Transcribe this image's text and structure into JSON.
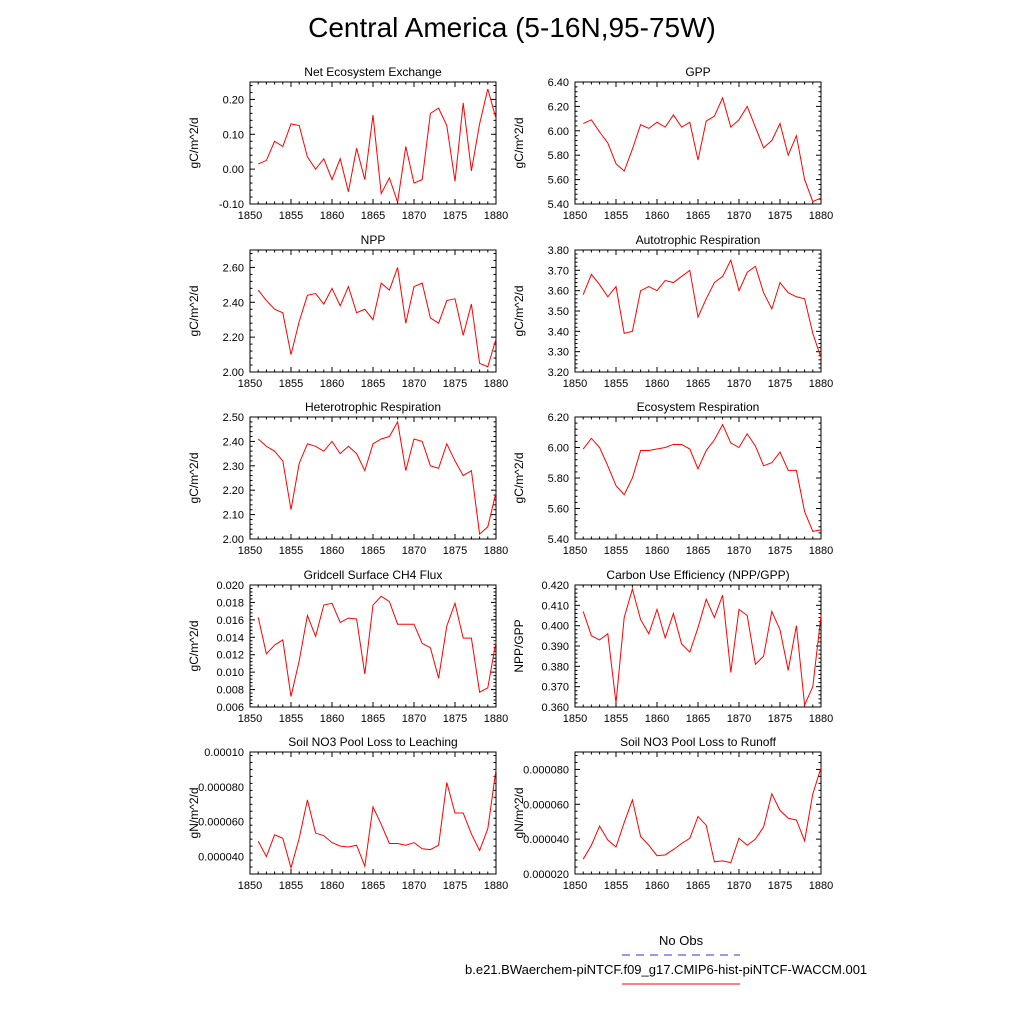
{
  "title": "Central America (5-16N,95-75W)",
  "legend": {
    "items": [
      {
        "label": "No Obs",
        "color": "#3333cc",
        "dash": true
      },
      {
        "label": "b.e21.BWaerchem-piNTCF.f09_g17.CMIP6-hist-piNTCF-WACCM.001",
        "color": "#ff0000",
        "dash": false
      }
    ]
  },
  "chart_data": [
    {
      "type": "line",
      "title": "Net Ecosystem Exchange",
      "ylabel": "gC/m^2/d",
      "xlabel": "",
      "xlim": [
        1850,
        1880
      ],
      "ylim": [
        -0.1,
        0.25
      ],
      "xticks": [
        1850,
        1855,
        1860,
        1865,
        1870,
        1875,
        1880
      ],
      "xtick_labels": [
        "1850",
        "1855",
        "1860",
        "1865",
        "1870",
        "1875",
        "1880"
      ],
      "yticks": [
        -0.1,
        0.0,
        0.1,
        0.2
      ],
      "ytick_labels": [
        "-0.10",
        "0.00",
        "0.10",
        "0.20"
      ],
      "x": [
        1851,
        1852,
        1853,
        1854,
        1855,
        1856,
        1857,
        1858,
        1859,
        1860,
        1861,
        1862,
        1863,
        1864,
        1865,
        1866,
        1867,
        1868,
        1869,
        1870,
        1871,
        1872,
        1873,
        1874,
        1875,
        1876,
        1877,
        1878,
        1879,
        1880
      ],
      "series": [
        {
          "color": "#ff0000",
          "values": [
            0.015,
            0.025,
            0.08,
            0.065,
            0.13,
            0.125,
            0.035,
            0.0,
            0.03,
            -0.03,
            0.03,
            -0.065,
            0.06,
            -0.03,
            0.155,
            -0.07,
            -0.025,
            -0.095,
            0.065,
            -0.04,
            -0.03,
            0.16,
            0.175,
            0.125,
            -0.035,
            0.19,
            -0.005,
            0.13,
            0.23,
            0.145
          ]
        }
      ]
    },
    {
      "type": "line",
      "title": "GPP",
      "ylabel": "gC/m^2/d",
      "xlabel": "",
      "xlim": [
        1850,
        1880
      ],
      "ylim": [
        5.4,
        6.4
      ],
      "xticks": [
        1850,
        1855,
        1860,
        1865,
        1870,
        1875,
        1880
      ],
      "xtick_labels": [
        "1850",
        "1855",
        "1860",
        "1865",
        "1870",
        "1875",
        "1880"
      ],
      "yticks": [
        5.4,
        5.6,
        5.8,
        6.0,
        6.2,
        6.4
      ],
      "ytick_labels": [
        "5.40",
        "5.60",
        "5.80",
        "6.00",
        "6.20",
        "6.40"
      ],
      "x": [
        1851,
        1852,
        1853,
        1854,
        1855,
        1856,
        1857,
        1858,
        1859,
        1860,
        1861,
        1862,
        1863,
        1864,
        1865,
        1866,
        1867,
        1868,
        1869,
        1870,
        1871,
        1872,
        1873,
        1874,
        1875,
        1876,
        1877,
        1878,
        1879,
        1880
      ],
      "series": [
        {
          "color": "#ff0000",
          "values": [
            6.06,
            6.09,
            5.99,
            5.9,
            5.73,
            5.67,
            5.85,
            6.05,
            6.02,
            6.07,
            6.03,
            6.13,
            6.03,
            6.07,
            5.76,
            6.08,
            6.12,
            6.27,
            6.03,
            6.09,
            6.2,
            6.03,
            5.86,
            5.92,
            6.06,
            5.8,
            5.96,
            5.6,
            5.42,
            5.45
          ]
        }
      ]
    },
    {
      "type": "line",
      "title": "NPP",
      "ylabel": "gC/m^2/d",
      "xlabel": "",
      "xlim": [
        1850,
        1880
      ],
      "ylim": [
        2.0,
        2.7
      ],
      "xticks": [
        1850,
        1855,
        1860,
        1865,
        1870,
        1875,
        1880
      ],
      "xtick_labels": [
        "1850",
        "1855",
        "1860",
        "1865",
        "1870",
        "1875",
        "1880"
      ],
      "yticks": [
        2.0,
        2.2,
        2.4,
        2.6
      ],
      "ytick_labels": [
        "2.00",
        "2.20",
        "2.40",
        "2.60"
      ],
      "x": [
        1851,
        1852,
        1853,
        1854,
        1855,
        1856,
        1857,
        1858,
        1859,
        1860,
        1861,
        1862,
        1863,
        1864,
        1865,
        1866,
        1867,
        1868,
        1869,
        1870,
        1871,
        1872,
        1873,
        1874,
        1875,
        1876,
        1877,
        1878,
        1879,
        1880
      ],
      "series": [
        {
          "color": "#ff0000",
          "values": [
            2.47,
            2.41,
            2.36,
            2.34,
            2.1,
            2.29,
            2.44,
            2.45,
            2.39,
            2.48,
            2.38,
            2.49,
            2.34,
            2.36,
            2.3,
            2.51,
            2.47,
            2.6,
            2.28,
            2.49,
            2.51,
            2.31,
            2.28,
            2.41,
            2.42,
            2.21,
            2.39,
            2.05,
            2.03,
            2.19
          ]
        }
      ]
    },
    {
      "type": "line",
      "title": "Autotrophic Respiration",
      "ylabel": "gC/m^2/d",
      "xlabel": "",
      "xlim": [
        1850,
        1880
      ],
      "ylim": [
        3.2,
        3.8
      ],
      "xticks": [
        1850,
        1855,
        1860,
        1865,
        1870,
        1875,
        1880
      ],
      "xtick_labels": [
        "1850",
        "1855",
        "1860",
        "1865",
        "1870",
        "1875",
        "1880"
      ],
      "yticks": [
        3.2,
        3.3,
        3.4,
        3.5,
        3.6,
        3.7,
        3.8
      ],
      "ytick_labels": [
        "3.20",
        "3.30",
        "3.40",
        "3.50",
        "3.60",
        "3.70",
        "3.80"
      ],
      "x": [
        1851,
        1852,
        1853,
        1854,
        1855,
        1856,
        1857,
        1858,
        1859,
        1860,
        1861,
        1862,
        1863,
        1864,
        1865,
        1866,
        1867,
        1868,
        1869,
        1870,
        1871,
        1872,
        1873,
        1874,
        1875,
        1876,
        1877,
        1878,
        1879,
        1880
      ],
      "series": [
        {
          "color": "#ff0000",
          "values": [
            3.58,
            3.68,
            3.63,
            3.57,
            3.62,
            3.39,
            3.4,
            3.6,
            3.62,
            3.6,
            3.65,
            3.64,
            3.67,
            3.7,
            3.47,
            3.56,
            3.64,
            3.67,
            3.75,
            3.6,
            3.69,
            3.72,
            3.59,
            3.51,
            3.64,
            3.59,
            3.57,
            3.56,
            3.39,
            3.27
          ]
        }
      ]
    },
    {
      "type": "line",
      "title": "Heterotrophic Respiration",
      "ylabel": "gC/m^2/d",
      "xlabel": "",
      "xlim": [
        1850,
        1880
      ],
      "ylim": [
        2.0,
        2.5
      ],
      "xticks": [
        1850,
        1855,
        1860,
        1865,
        1870,
        1875,
        1880
      ],
      "xtick_labels": [
        "1850",
        "1855",
        "1860",
        "1865",
        "1870",
        "1875",
        "1880"
      ],
      "yticks": [
        2.0,
        2.1,
        2.2,
        2.3,
        2.4,
        2.5
      ],
      "ytick_labels": [
        "2.00",
        "2.10",
        "2.20",
        "2.30",
        "2.40",
        "2.50"
      ],
      "x": [
        1851,
        1852,
        1853,
        1854,
        1855,
        1856,
        1857,
        1858,
        1859,
        1860,
        1861,
        1862,
        1863,
        1864,
        1865,
        1866,
        1867,
        1868,
        1869,
        1870,
        1871,
        1872,
        1873,
        1874,
        1875,
        1876,
        1877,
        1878,
        1879,
        1880
      ],
      "series": [
        {
          "color": "#ff0000",
          "values": [
            2.41,
            2.38,
            2.36,
            2.32,
            2.12,
            2.31,
            2.39,
            2.38,
            2.36,
            2.4,
            2.35,
            2.38,
            2.35,
            2.28,
            2.39,
            2.41,
            2.42,
            2.48,
            2.28,
            2.41,
            2.4,
            2.3,
            2.29,
            2.39,
            2.32,
            2.26,
            2.28,
            2.02,
            2.05,
            2.19
          ]
        }
      ]
    },
    {
      "type": "line",
      "title": "Ecosystem Respiration",
      "ylabel": "gC/m^2/d",
      "xlabel": "",
      "xlim": [
        1850,
        1880
      ],
      "ylim": [
        5.4,
        6.2
      ],
      "xticks": [
        1850,
        1855,
        1860,
        1865,
        1870,
        1875,
        1880
      ],
      "xtick_labels": [
        "1850",
        "1855",
        "1860",
        "1865",
        "1870",
        "1875",
        "1880"
      ],
      "yticks": [
        5.4,
        5.6,
        5.8,
        6.0,
        6.2
      ],
      "ytick_labels": [
        "5.40",
        "5.60",
        "5.80",
        "6.00",
        "6.20"
      ],
      "x": [
        1851,
        1852,
        1853,
        1854,
        1855,
        1856,
        1857,
        1858,
        1859,
        1860,
        1861,
        1862,
        1863,
        1864,
        1865,
        1866,
        1867,
        1868,
        1869,
        1870,
        1871,
        1872,
        1873,
        1874,
        1875,
        1876,
        1877,
        1878,
        1879,
        1880
      ],
      "series": [
        {
          "color": "#ff0000",
          "values": [
            5.99,
            6.06,
            6.0,
            5.88,
            5.75,
            5.69,
            5.8,
            5.98,
            5.98,
            5.99,
            6.0,
            6.02,
            6.02,
            5.99,
            5.86,
            5.98,
            6.05,
            6.15,
            6.03,
            6.0,
            6.09,
            6.01,
            5.88,
            5.9,
            5.97,
            5.85,
            5.85,
            5.58,
            5.45,
            5.46
          ]
        }
      ]
    },
    {
      "type": "line",
      "title": "Gridcell Surface CH4 Flux",
      "ylabel": "gC/m^2/d",
      "xlabel": "",
      "xlim": [
        1850,
        1880
      ],
      "ylim": [
        0.006,
        0.02
      ],
      "xticks": [
        1850,
        1855,
        1860,
        1865,
        1870,
        1875,
        1880
      ],
      "xtick_labels": [
        "1850",
        "1855",
        "1860",
        "1865",
        "1870",
        "1875",
        "1880"
      ],
      "yticks": [
        0.006,
        0.008,
        0.01,
        0.012,
        0.014,
        0.016,
        0.018,
        0.02
      ],
      "ytick_labels": [
        "0.006",
        "0.008",
        "0.010",
        "0.012",
        "0.014",
        "0.016",
        "0.018",
        "0.020"
      ],
      "x": [
        1851,
        1852,
        1853,
        1854,
        1855,
        1856,
        1857,
        1858,
        1859,
        1860,
        1861,
        1862,
        1863,
        1864,
        1865,
        1866,
        1867,
        1868,
        1869,
        1870,
        1871,
        1872,
        1873,
        1874,
        1875,
        1876,
        1877,
        1878,
        1879,
        1880
      ],
      "series": [
        {
          "color": "#ff0000",
          "values": [
            0.0163,
            0.0121,
            0.0131,
            0.0137,
            0.0072,
            0.0113,
            0.0165,
            0.0141,
            0.0177,
            0.0179,
            0.0157,
            0.0162,
            0.0161,
            0.0098,
            0.0177,
            0.0187,
            0.0181,
            0.0155,
            0.0155,
            0.0155,
            0.0133,
            0.0128,
            0.0093,
            0.0153,
            0.0179,
            0.0139,
            0.0139,
            0.0077,
            0.0082,
            0.0135
          ]
        }
      ]
    },
    {
      "type": "line",
      "title": "Carbon Use Efficiency (NPP/GPP)",
      "ylabel": "NPP/GPP",
      "xlabel": "",
      "xlim": [
        1850,
        1880
      ],
      "ylim": [
        0.36,
        0.42
      ],
      "xticks": [
        1850,
        1855,
        1860,
        1865,
        1870,
        1875,
        1880
      ],
      "xtick_labels": [
        "1850",
        "1855",
        "1860",
        "1865",
        "1870",
        "1875",
        "1880"
      ],
      "yticks": [
        0.36,
        0.37,
        0.38,
        0.39,
        0.4,
        0.41,
        0.42
      ],
      "ytick_labels": [
        "0.360",
        "0.370",
        "0.380",
        "0.390",
        "0.400",
        "0.410",
        "0.420"
      ],
      "x": [
        1851,
        1852,
        1853,
        1854,
        1855,
        1856,
        1857,
        1858,
        1859,
        1860,
        1861,
        1862,
        1863,
        1864,
        1865,
        1866,
        1867,
        1868,
        1869,
        1870,
        1871,
        1872,
        1873,
        1874,
        1875,
        1876,
        1877,
        1878,
        1879,
        1880
      ],
      "series": [
        {
          "color": "#ff0000",
          "values": [
            0.407,
            0.395,
            0.393,
            0.396,
            0.362,
            0.404,
            0.418,
            0.403,
            0.396,
            0.408,
            0.394,
            0.406,
            0.391,
            0.387,
            0.399,
            0.413,
            0.404,
            0.415,
            0.377,
            0.408,
            0.405,
            0.381,
            0.385,
            0.407,
            0.398,
            0.378,
            0.4,
            0.361,
            0.37,
            0.405
          ]
        }
      ]
    },
    {
      "type": "line",
      "title": "Soil NO3 Pool Loss to Leaching",
      "ylabel": "gN/m^2/d",
      "xlabel": "",
      "xlim": [
        1850,
        1880
      ],
      "ylim": [
        3e-05,
        0.0001
      ],
      "xticks": [
        1850,
        1855,
        1860,
        1865,
        1870,
        1875,
        1880
      ],
      "xtick_labels": [
        "1850",
        "1855",
        "1860",
        "1865",
        "1870",
        "1875",
        "1880"
      ],
      "yticks": [
        4e-05,
        6e-05,
        8e-05,
        0.0001
      ],
      "ytick_labels": [
        "0.000040",
        "0.000060",
        "0.000080",
        "0.00010"
      ],
      "x": [
        1851,
        1852,
        1853,
        1854,
        1855,
        1856,
        1857,
        1858,
        1859,
        1860,
        1861,
        1862,
        1863,
        1864,
        1865,
        1866,
        1867,
        1868,
        1869,
        1870,
        1871,
        1872,
        1873,
        1874,
        1875,
        1876,
        1877,
        1878,
        1879,
        1880
      ],
      "series": [
        {
          "color": "#ff0000",
          "values": [
            4.88e-05,
            4e-05,
            5.25e-05,
            5.05e-05,
            3.35e-05,
            5.05e-05,
            7.25e-05,
            5.35e-05,
            5.2e-05,
            4.8e-05,
            4.6e-05,
            4.55e-05,
            4.65e-05,
            3.45e-05,
            6.85e-05,
            5.85e-05,
            4.75e-05,
            4.75e-05,
            4.65e-05,
            4.8e-05,
            4.45e-05,
            4.4e-05,
            4.65e-05,
            8.25e-05,
            6.5e-05,
            6.5e-05,
            5.3e-05,
            4.35e-05,
            5.6e-05,
            9e-05
          ]
        }
      ]
    },
    {
      "type": "line",
      "title": "Soil NO3 Pool Loss to Runoff",
      "ylabel": "gN/m^2/d",
      "xlabel": "",
      "xlim": [
        1850,
        1880
      ],
      "ylim": [
        2e-05,
        9e-05
      ],
      "xticks": [
        1850,
        1855,
        1860,
        1865,
        1870,
        1875,
        1880
      ],
      "xtick_labels": [
        "1850",
        "1855",
        "1860",
        "1865",
        "1870",
        "1875",
        "1880"
      ],
      "yticks": [
        2e-05,
        4e-05,
        6e-05,
        8e-05
      ],
      "ytick_labels": [
        "0.000020",
        "0.000040",
        "0.000060",
        "0.000080"
      ],
      "x": [
        1851,
        1852,
        1853,
        1854,
        1855,
        1856,
        1857,
        1858,
        1859,
        1860,
        1861,
        1862,
        1863,
        1864,
        1865,
        1866,
        1867,
        1868,
        1869,
        1870,
        1871,
        1872,
        1873,
        1874,
        1875,
        1876,
        1877,
        1878,
        1879,
        1880
      ],
      "series": [
        {
          "color": "#ff0000",
          "values": [
            2.85e-05,
            3.65e-05,
            4.75e-05,
            3.95e-05,
            3.55e-05,
            4.95e-05,
            6.25e-05,
            4.15e-05,
            3.65e-05,
            3.05e-05,
            3.1e-05,
            3.4e-05,
            3.75e-05,
            4.05e-05,
            5.3e-05,
            4.8e-05,
            2.7e-05,
            2.75e-05,
            2.65e-05,
            4.05e-05,
            3.65e-05,
            4e-05,
            4.7e-05,
            6.6e-05,
            5.65e-05,
            5.2e-05,
            5.1e-05,
            3.9e-05,
            6.6e-05,
            8.1e-05
          ]
        }
      ]
    }
  ]
}
